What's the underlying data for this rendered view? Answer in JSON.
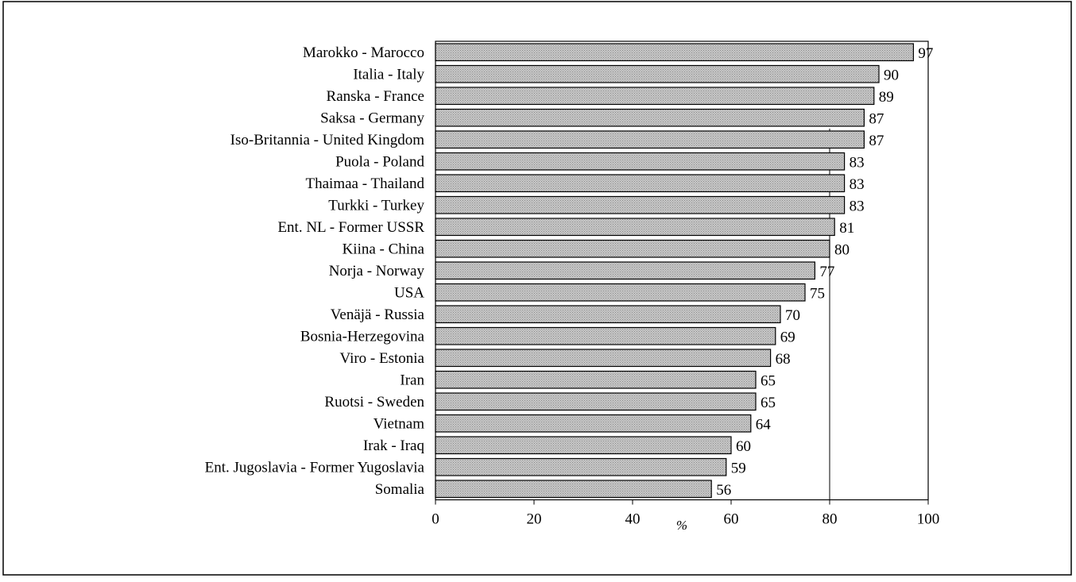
{
  "chart_data": {
    "type": "bar",
    "orientation": "horizontal",
    "title": "",
    "xlabel": "%",
    "ylabel": "",
    "xlim": [
      0,
      100
    ],
    "xticks": [
      "0",
      "20",
      "40",
      "60",
      "80",
      "100"
    ],
    "grid": false,
    "reference_line_x": 80,
    "bar_fill": "#c8c8c8",
    "bar_edge": "#000000",
    "categories": [
      "Marokko - Marocco",
      "Italia - Italy",
      "Ranska - France",
      "Saksa - Germany",
      "Iso-Britannia - United Kingdom",
      "Puola - Poland",
      "Thaimaa - Thailand",
      "Turkki - Turkey",
      "Ent. NL - Former USSR",
      "Kiina - China",
      "Norja - Norway",
      "USA",
      "Venäjä - Russia",
      "Bosnia-Herzegovina",
      "Viro - Estonia",
      "Iran",
      "Ruotsi - Sweden",
      "Vietnam",
      "Irak - Iraq",
      "Ent. Jugoslavia - Former Yugoslavia",
      "Somalia"
    ],
    "values": [
      97,
      90,
      89,
      87,
      87,
      83,
      83,
      83,
      81,
      80,
      77,
      75,
      70,
      69,
      68,
      65,
      65,
      64,
      60,
      59,
      56
    ]
  }
}
